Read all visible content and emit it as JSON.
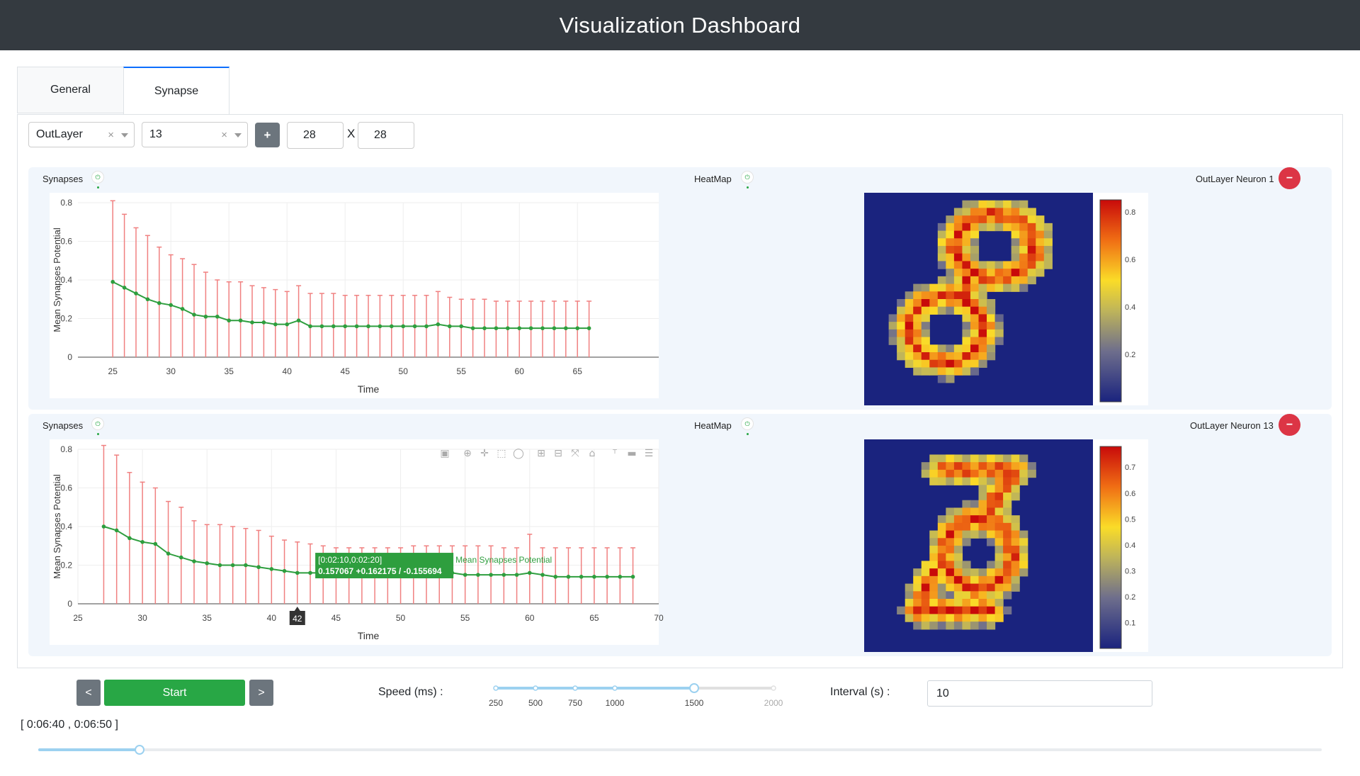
{
  "header": {
    "title": "Visualization Dashboard"
  },
  "tabs": [
    {
      "label": "General",
      "active": false
    },
    {
      "label": "Synapse",
      "active": true
    }
  ],
  "toolbar": {
    "layer_select": {
      "value": "OutLayer",
      "clear": "×"
    },
    "neuron_select": {
      "value": "13",
      "clear": "×"
    },
    "add_label": "+",
    "width": "28",
    "height": "28",
    "x_label": "X"
  },
  "rows": [
    {
      "synapses_label": "Synapses",
      "heatmap_label": "HeatMap",
      "neuron_label": "OutLayer Neuron 1",
      "remove_label": "−",
      "chart_data": {
        "type": "line",
        "xlabel": "Time",
        "ylabel": "Mean Synapses Potential",
        "xlim": [
          22,
          72
        ],
        "ylim": [
          0,
          0.8
        ],
        "xticks": [
          25,
          30,
          35,
          40,
          45,
          50,
          55,
          60,
          65
        ],
        "yticks": [
          0,
          0.2,
          0.4,
          0.6,
          0.8
        ],
        "series": [
          {
            "x": [
              25,
              26,
              27,
              28,
              29,
              30,
              31,
              32,
              33,
              34,
              35,
              36,
              37,
              38,
              39,
              40,
              41,
              42,
              43,
              44,
              45,
              46,
              47,
              48,
              49,
              50,
              51,
              52,
              53,
              54,
              55,
              56,
              57,
              58,
              59,
              60,
              61,
              62,
              63,
              64,
              65,
              66
            ],
            "values": [
              0.39,
              0.36,
              0.33,
              0.3,
              0.28,
              0.27,
              0.25,
              0.22,
              0.21,
              0.21,
              0.19,
              0.19,
              0.18,
              0.18,
              0.17,
              0.17,
              0.19,
              0.16,
              0.16,
              0.16,
              0.16,
              0.16,
              0.16,
              0.16,
              0.16,
              0.16,
              0.16,
              0.16,
              0.17,
              0.16,
              0.16,
              0.15,
              0.15,
              0.15,
              0.15,
              0.15,
              0.15,
              0.15,
              0.15,
              0.15,
              0.15,
              0.15
            ],
            "upper": [
              0.81,
              0.74,
              0.67,
              0.63,
              0.57,
              0.53,
              0.51,
              0.48,
              0.44,
              0.4,
              0.39,
              0.39,
              0.37,
              0.36,
              0.35,
              0.34,
              0.37,
              0.33,
              0.33,
              0.33,
              0.32,
              0.32,
              0.32,
              0.32,
              0.32,
              0.32,
              0.32,
              0.32,
              0.34,
              0.31,
              0.3,
              0.3,
              0.3,
              0.29,
              0.29,
              0.29,
              0.29,
              0.29,
              0.29,
              0.29,
              0.29,
              0.29
            ],
            "lower": [
              0,
              0,
              0,
              0,
              0,
              0,
              0,
              0,
              0,
              0,
              0,
              0,
              0,
              0,
              0,
              0,
              0,
              0,
              0,
              0,
              0,
              0,
              0,
              0,
              0,
              0,
              0,
              0,
              0,
              0,
              0,
              0,
              0,
              0,
              0,
              0,
              0,
              0,
              0,
              0,
              0,
              0
            ]
          }
        ]
      },
      "heatmap": {
        "ticks": [
          "0.8",
          "0.6",
          "0.4",
          "0.2"
        ],
        "tick_values": [
          0.8,
          0.6,
          0.4,
          0.2
        ],
        "range": [
          0,
          0.85
        ]
      }
    },
    {
      "synapses_label": "Synapses",
      "heatmap_label": "HeatMap",
      "neuron_label": "OutLayer Neuron 13",
      "remove_label": "−",
      "chart_data": {
        "type": "line",
        "xlabel": "Time",
        "ylabel": "Mean Synapses Potential",
        "xlim": [
          25,
          70
        ],
        "ylim": [
          0,
          0.8
        ],
        "xticks": [
          25,
          30,
          35,
          40,
          45,
          50,
          55,
          60,
          65,
          70
        ],
        "yticks": [
          0,
          0.2,
          0.4,
          0.6,
          0.8
        ],
        "series": [
          {
            "name": "Mean Synapses Potential",
            "x": [
              27,
              28,
              29,
              30,
              31,
              32,
              33,
              34,
              35,
              36,
              37,
              38,
              39,
              40,
              41,
              42,
              43,
              44,
              45,
              46,
              47,
              48,
              49,
              50,
              51,
              52,
              53,
              54,
              55,
              56,
              57,
              58,
              59,
              60,
              61,
              62,
              63,
              64,
              65,
              66,
              67,
              68
            ],
            "values": [
              0.4,
              0.38,
              0.34,
              0.32,
              0.31,
              0.26,
              0.24,
              0.22,
              0.21,
              0.2,
              0.2,
              0.2,
              0.19,
              0.18,
              0.17,
              0.16,
              0.16,
              0.16,
              0.16,
              0.16,
              0.16,
              0.16,
              0.16,
              0.16,
              0.16,
              0.16,
              0.16,
              0.16,
              0.15,
              0.15,
              0.15,
              0.15,
              0.15,
              0.16,
              0.15,
              0.14,
              0.14,
              0.14,
              0.14,
              0.14,
              0.14,
              0.14
            ],
            "upper": [
              0.82,
              0.77,
              0.68,
              0.63,
              0.6,
              0.53,
              0.5,
              0.43,
              0.41,
              0.41,
              0.4,
              0.39,
              0.38,
              0.35,
              0.33,
              0.32,
              0.31,
              0.3,
              0.29,
              0.29,
              0.29,
              0.29,
              0.29,
              0.29,
              0.3,
              0.3,
              0.3,
              0.3,
              0.3,
              0.3,
              0.3,
              0.29,
              0.29,
              0.36,
              0.29,
              0.29,
              0.29,
              0.29,
              0.29,
              0.29,
              0.29,
              0.29
            ],
            "lower": [
              0,
              0,
              0,
              0,
              0,
              0,
              0,
              0,
              0,
              0,
              0,
              0,
              0,
              0,
              0,
              0,
              0,
              0,
              0,
              0,
              0,
              0,
              0,
              0,
              0,
              0,
              0,
              0,
              0,
              0,
              0,
              0,
              0,
              0,
              0,
              0,
              0,
              0,
              0,
              0,
              0,
              0
            ]
          }
        ],
        "hover": {
          "x_label": "42",
          "title": "[0:02:10,0:02:20]",
          "value": "0.157067 +0.162175 / -0.155694",
          "series": "Mean Synapses Potential"
        }
      },
      "heatmap": {
        "ticks": [
          "0.7",
          "0.6",
          "0.5",
          "0.4",
          "0.3",
          "0.2",
          "0.1"
        ],
        "tick_values": [
          0.7,
          0.6,
          0.5,
          0.4,
          0.3,
          0.2,
          0.1
        ],
        "range": [
          0,
          0.78
        ]
      }
    }
  ],
  "controls": {
    "prev_label": "<",
    "start_label": "Start",
    "next_label": ">",
    "speed_label": "Speed (ms) :",
    "speed_ticks": [
      "250",
      "500",
      "750",
      "1000",
      "1500",
      "2000"
    ],
    "speed_value": "1500",
    "interval_label": "Interval (s) :",
    "interval_value": "10",
    "time_range": "[ 0:06:40 , 0:06:50 ]",
    "time_progress": 0.078
  },
  "colors": {
    "header_bg": "#343a40",
    "accent_green": "#28a745",
    "danger": "#dc3545",
    "error_bar": "#f08080",
    "line": "#2e9e3e",
    "heatmap_bg": "#1a237e"
  }
}
